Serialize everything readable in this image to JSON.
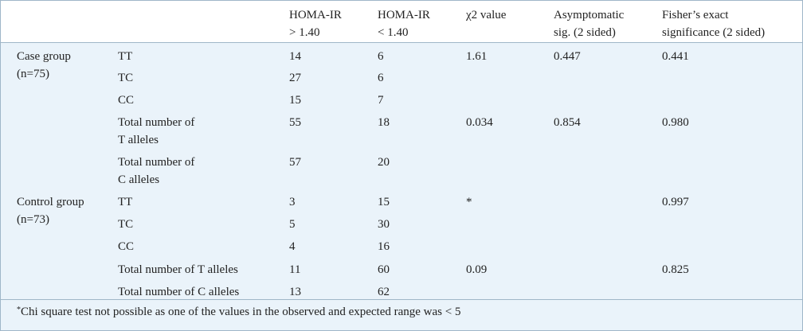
{
  "table": {
    "headers": [
      "",
      "",
      [
        "HOMA-IR",
        "> 1.40"
      ],
      [
        "HOMA-IR",
        "< 1.40"
      ],
      [
        "χ2 value"
      ],
      [
        "Asymptomatic",
        "sig. (2 sided)"
      ],
      [
        "Fisher’s exact",
        "significance (2 sided)"
      ]
    ],
    "rows": [
      {
        "group": [
          "Case group",
          "(n=75)"
        ],
        "genotype": [
          "TT"
        ],
        "gt": "14",
        "lt": "6",
        "chi": "1.61",
        "asym": "0.447",
        "fisher": "0.441"
      },
      {
        "group": [],
        "genotype": [
          "TC"
        ],
        "gt": "27",
        "lt": "6",
        "chi": "",
        "asym": "",
        "fisher": ""
      },
      {
        "group": [],
        "genotype": [
          "CC"
        ],
        "gt": "15",
        "lt": "7",
        "chi": "",
        "asym": "",
        "fisher": ""
      },
      {
        "group": [],
        "genotype": [
          "Total number of",
          "T alleles"
        ],
        "gt": "55",
        "lt": "18",
        "chi": "0.034",
        "asym": "0.854",
        "fisher": "0.980"
      },
      {
        "group": [],
        "genotype": [
          "Total number of",
          "C alleles"
        ],
        "gt": "57",
        "lt": "20",
        "chi": "",
        "asym": "",
        "fisher": ""
      },
      {
        "group": [
          "Control group",
          "(n=73)"
        ],
        "genotype": [
          "TT"
        ],
        "gt": "3",
        "lt": "15",
        "chi": "*",
        "asym": "",
        "fisher": "0.997"
      },
      {
        "group": [],
        "genotype": [
          "TC"
        ],
        "gt": "5",
        "lt": "30",
        "chi": "",
        "asym": "",
        "fisher": ""
      },
      {
        "group": [],
        "genotype": [
          "CC"
        ],
        "gt": "4",
        "lt": "16",
        "chi": "",
        "asym": "",
        "fisher": ""
      },
      {
        "group": [],
        "genotype": [
          "Total number of T alleles"
        ],
        "gt": "11",
        "lt": "60",
        "chi": "0.09",
        "asym": "",
        "fisher": "0.825"
      },
      {
        "group": [],
        "genotype": [
          "Total number of C alleles"
        ],
        "gt": "13",
        "lt": "62",
        "chi": "",
        "asym": "",
        "fisher": ""
      }
    ]
  },
  "footnote": {
    "marker": "*",
    "text": "Chi square test not possible as one of the values in the observed and expected range was < 5"
  }
}
